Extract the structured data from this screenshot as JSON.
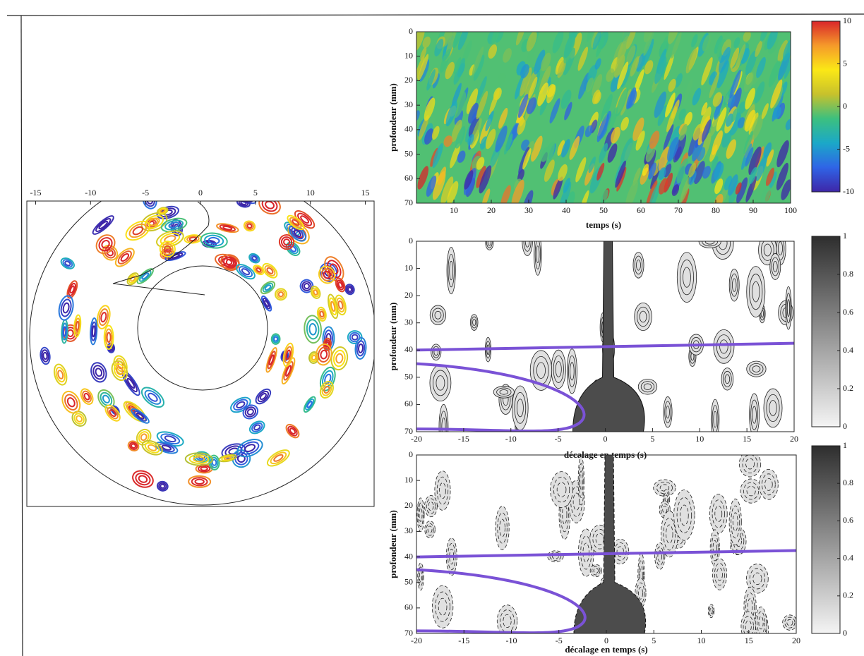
{
  "chart_data": [
    {
      "type": "polar-contour",
      "xlim": [
        -15.8,
        15.8
      ],
      "xticks": [
        -15,
        -10,
        -5,
        0,
        5,
        10,
        15
      ],
      "colormap": [
        "#3e26a8",
        "#2f64e6",
        "#1ba8c8",
        "#3cc07f",
        "#c7c12c",
        "#fbe816",
        "#f59a2a",
        "#d9262a"
      ]
    },
    {
      "type": "heatmap",
      "xlabel": "temps (s)",
      "ylabel": "profondeur (mm)",
      "xlim": [
        0,
        100
      ],
      "xticks": [
        10,
        20,
        30,
        40,
        50,
        60,
        70,
        80,
        90,
        100
      ],
      "ylim": [
        70,
        0
      ],
      "yticks": [
        0,
        10,
        20,
        30,
        40,
        50,
        60,
        70
      ],
      "colormap": [
        "#3e26a8",
        "#2f64e6",
        "#1ba8c8",
        "#3cc07f",
        "#c7c12c",
        "#fbe816",
        "#f59a2a",
        "#d9262a"
      ],
      "colorbar": {
        "lim": [
          -10,
          10
        ],
        "ticks": [
          10,
          5,
          0,
          -5,
          -10
        ]
      }
    },
    {
      "type": "contour",
      "xlabel": "décalage en temps (s)",
      "ylabel": "profondeur (mm)",
      "xlim": [
        -20,
        20
      ],
      "xticks": [
        -20,
        -15,
        -10,
        -5,
        0,
        5,
        10,
        15,
        20
      ],
      "ylim": [
        70,
        0
      ],
      "yticks": [
        0,
        10,
        20,
        30,
        40,
        50,
        60,
        70
      ],
      "colormap": [
        "#f4f4f4",
        "#2e2e2e"
      ],
      "line_style": "solid",
      "colorbar": {
        "lim": [
          0,
          1
        ],
        "ticks": [
          1,
          0.8,
          0.6,
          0.4,
          0.2,
          0
        ]
      }
    },
    {
      "type": "contour",
      "xlabel": "décalage en temps (s)",
      "ylabel": "profondeur (mm)",
      "xlim": [
        -20,
        20
      ],
      "xticks": [
        -20,
        -15,
        -10,
        -5,
        0,
        5,
        10,
        15,
        20
      ],
      "ylim": [
        70,
        0
      ],
      "yticks": [
        0,
        10,
        20,
        30,
        40,
        50,
        60,
        70
      ],
      "colormap": [
        "#f4f4f4",
        "#2e2e2e"
      ],
      "line_style": "dashed",
      "colorbar": {
        "lim": [
          0,
          1
        ],
        "ticks": [
          1,
          0.8,
          0.6,
          0.4,
          0.2,
          0
        ]
      }
    }
  ]
}
